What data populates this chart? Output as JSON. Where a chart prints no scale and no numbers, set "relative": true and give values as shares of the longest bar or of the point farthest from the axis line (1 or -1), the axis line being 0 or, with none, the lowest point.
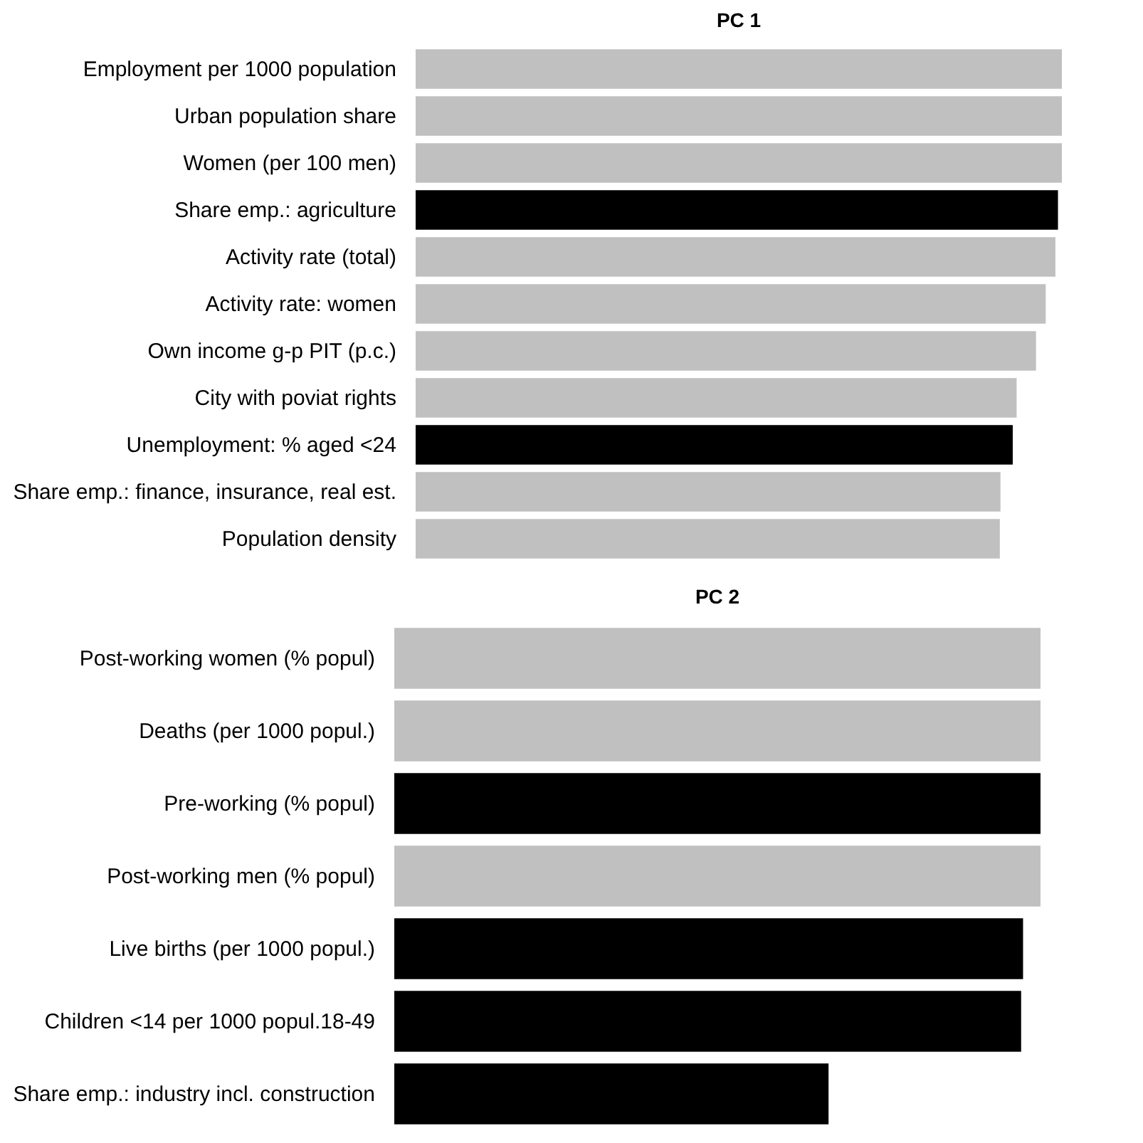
{
  "chart_data": [
    {
      "type": "bar",
      "orientation": "horizontal",
      "relative": true,
      "title": "PC 1",
      "categories": [
        "Employment per 1000 population",
        "Urban population share",
        "Women (per 100 men)",
        "Share emp.: agriculture",
        "Activity rate (total)",
        "Activity rate: women",
        "Own income g-p PIT (p.c.)",
        "City with poviat rights",
        "Unemployment: % aged <24",
        "Share emp.: finance, insurance, real est.",
        "Population density"
      ],
      "values": [
        1,
        1,
        1,
        0.994,
        0.99,
        0.975,
        0.96,
        0.93,
        0.924,
        0.905,
        0.904
      ],
      "colors": [
        "#c0c0c0",
        "#c0c0c0",
        "#c0c0c0",
        "#000000",
        "#c0c0c0",
        "#c0c0c0",
        "#c0c0c0",
        "#c0c0c0",
        "#000000",
        "#c0c0c0",
        "#c0c0c0"
      ]
    },
    {
      "type": "bar",
      "orientation": "horizontal",
      "relative": true,
      "title": "PC 2",
      "categories": [
        "Post-working women (% popul)",
        "Deaths (per 1000 popul.)",
        "Pre-working (% popul)",
        "Post-working men (% popul)",
        "Live births (per 1000 popul.)",
        "Children <14 per 1000 popul.18-49",
        "Share emp.: industry incl. construction"
      ],
      "values": [
        1,
        1,
        1,
        1,
        0.973,
        0.97,
        0.672
      ],
      "colors": [
        "#c0c0c0",
        "#c0c0c0",
        "#000000",
        "#c0c0c0",
        "#000000",
        "#000000",
        "#000000"
      ]
    }
  ]
}
